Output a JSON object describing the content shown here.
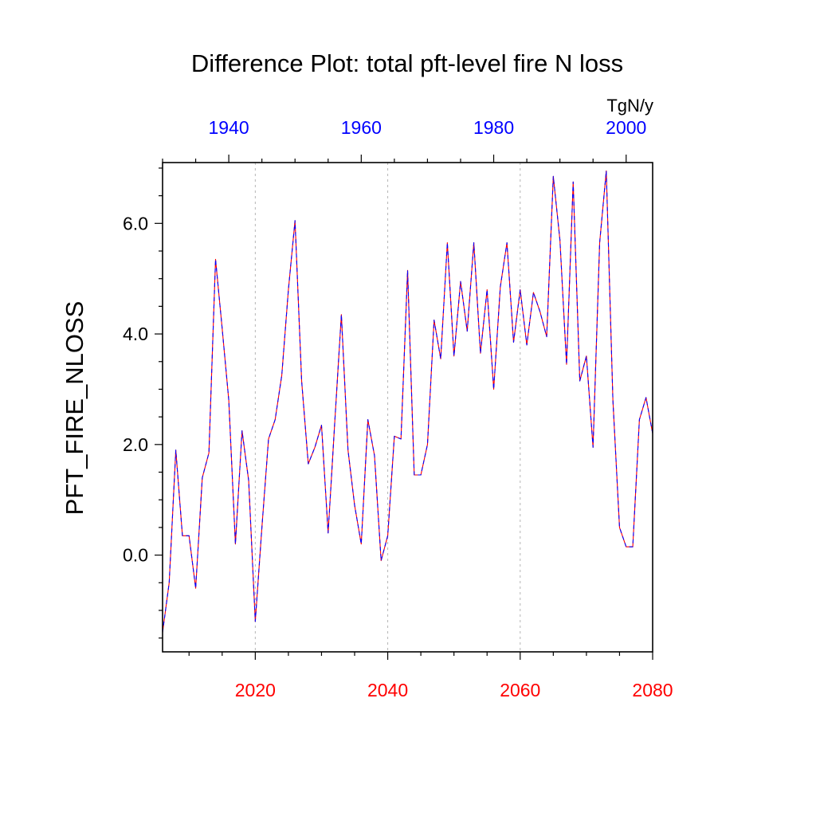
{
  "chart_data": {
    "type": "line",
    "title": "Difference Plot: total pft-level fire N loss",
    "units": "TgN/y",
    "ylabel": "PFT_FIRE_NLOSS",
    "xlabel": "",
    "ylim": [
      -1.75,
      7.1
    ],
    "y_ticks": [
      {
        "value": 0,
        "label": "0.0"
      },
      {
        "value": 2,
        "label": "2.0"
      },
      {
        "value": 4,
        "label": "4.0"
      },
      {
        "value": 6,
        "label": "6.0"
      }
    ],
    "y_minor_step": 0.5,
    "bottom_axis": {
      "range": [
        2006,
        2080
      ],
      "color": "#ff0000",
      "major": [
        2020,
        2040,
        2060,
        2080
      ],
      "minor_step": 5
    },
    "top_axis": {
      "range": [
        1930,
        2004
      ],
      "color": "#0000ff",
      "major": [
        1940,
        1960,
        1980,
        2000
      ],
      "minor_step": 5
    },
    "grid": "vertical dashed at bottom-axis major ticks",
    "series": [
      {
        "name": "difference",
        "color_primary": "#ff0000",
        "color_dash": "#0000ff",
        "x": [
          2006,
          2007,
          2008,
          2009,
          2010,
          2011,
          2012,
          2013,
          2014,
          2015,
          2016,
          2017,
          2018,
          2019,
          2020,
          2021,
          2022,
          2023,
          2024,
          2025,
          2026,
          2027,
          2028,
          2029,
          2030,
          2031,
          2032,
          2033,
          2034,
          2035,
          2036,
          2037,
          2038,
          2039,
          2040,
          2041,
          2042,
          2043,
          2044,
          2045,
          2046,
          2047,
          2048,
          2049,
          2050,
          2051,
          2052,
          2053,
          2054,
          2055,
          2056,
          2057,
          2058,
          2059,
          2060,
          2061,
          2062,
          2063,
          2064,
          2065,
          2066,
          2067,
          2068,
          2069,
          2070,
          2071,
          2072,
          2073,
          2074,
          2075,
          2076,
          2077,
          2078,
          2079,
          2080
        ],
        "values": [
          -1.4,
          -0.5,
          1.9,
          0.35,
          0.35,
          -0.6,
          1.4,
          1.85,
          5.35,
          4.1,
          2.8,
          0.2,
          2.25,
          1.35,
          -1.2,
          0.5,
          2.1,
          2.45,
          3.25,
          4.8,
          6.05,
          3.15,
          1.65,
          1.95,
          2.35,
          0.4,
          2.4,
          4.35,
          1.9,
          0.9,
          0.2,
          2.45,
          1.8,
          -0.1,
          0.35,
          2.15,
          2.1,
          5.15,
          1.45,
          1.45,
          2.0,
          4.25,
          3.55,
          5.65,
          3.6,
          4.95,
          4.05,
          5.65,
          3.65,
          4.8,
          3.0,
          4.85,
          5.65,
          3.85,
          4.8,
          3.8,
          4.75,
          4.4,
          3.95,
          6.85,
          5.7,
          3.45,
          6.75,
          3.15,
          3.6,
          1.95,
          5.65,
          6.95,
          2.8,
          0.5,
          0.15,
          0.15,
          2.45,
          2.85,
          2.2
        ]
      }
    ]
  }
}
